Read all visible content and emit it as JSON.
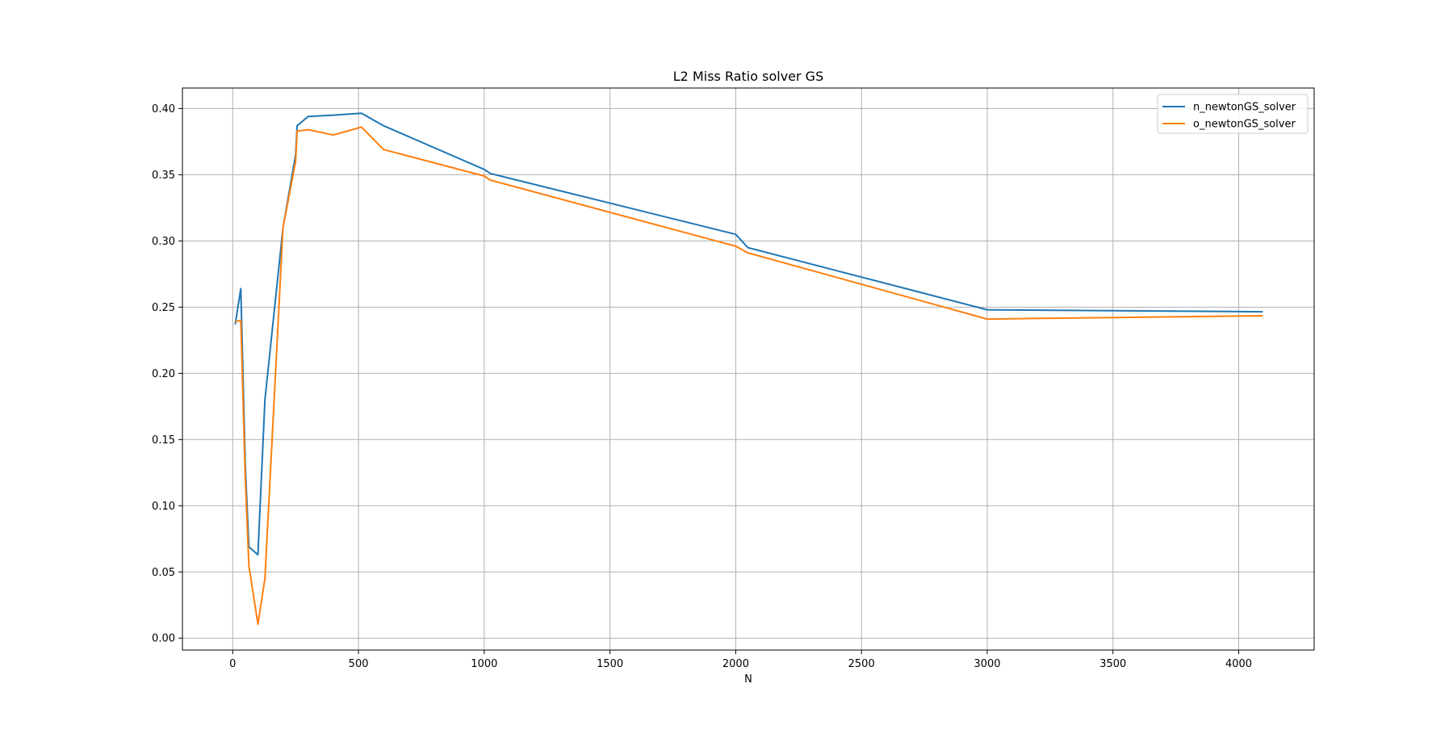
{
  "chart_data": {
    "type": "line",
    "title": "L2 Miss Ratio solver GS",
    "xlabel": "N",
    "ylabel": "",
    "xlim": [
      -200,
      4300
    ],
    "ylim": [
      -0.009,
      0.4155
    ],
    "xticks": [
      0,
      500,
      1000,
      1500,
      2000,
      2500,
      3000,
      3500,
      4000
    ],
    "xtick_labels": [
      "0",
      "500",
      "1000",
      "1500",
      "2000",
      "2500",
      "3000",
      "3500",
      "4000"
    ],
    "yticks": [
      0.0,
      0.05,
      0.1,
      0.15,
      0.2,
      0.25,
      0.3,
      0.35,
      0.4
    ],
    "ytick_labels": [
      "0.00",
      "0.05",
      "0.10",
      "0.15",
      "0.20",
      "0.25",
      "0.30",
      "0.35",
      "0.40"
    ],
    "grid": true,
    "legend_position": "top-right",
    "series": [
      {
        "name": "n_newtonGS_solver",
        "color": "#1f77b4",
        "x": [
          10,
          32,
          50,
          64,
          100,
          128,
          200,
          250,
          256,
          300,
          400,
          512,
          600,
          1000,
          1024,
          2000,
          2048,
          3000,
          4096
        ],
        "y": [
          0.237,
          0.264,
          0.13,
          0.069,
          0.063,
          0.18,
          0.31,
          0.365,
          0.387,
          0.394,
          0.395,
          0.3965,
          0.387,
          0.354,
          0.351,
          0.305,
          0.295,
          0.248,
          0.2465
        ]
      },
      {
        "name": "o_newtonGS_solver",
        "color": "#ff7f0e",
        "x": [
          10,
          32,
          50,
          64,
          100,
          128,
          200,
          250,
          256,
          300,
          400,
          512,
          600,
          1000,
          1024,
          2000,
          2048,
          3000,
          4096
        ],
        "y": [
          0.239,
          0.24,
          0.12,
          0.055,
          0.0105,
          0.045,
          0.31,
          0.36,
          0.383,
          0.384,
          0.38,
          0.386,
          0.369,
          0.349,
          0.346,
          0.296,
          0.291,
          0.241,
          0.2435
        ]
      }
    ]
  }
}
